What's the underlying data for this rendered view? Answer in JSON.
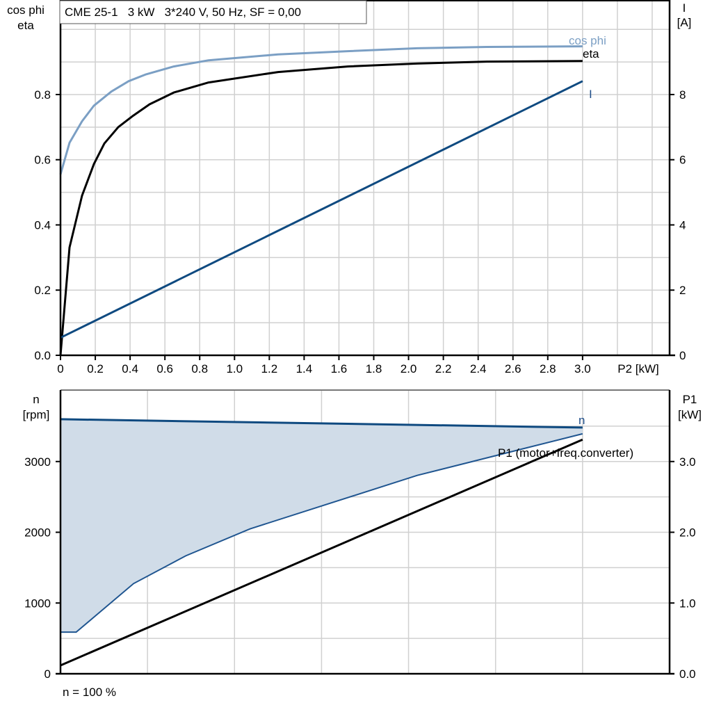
{
  "chart_data": [
    {
      "type": "line",
      "title": "CME 25-1   3 kW   3*240 V, 50 Hz, SF = 0,00",
      "xlabel": "P2 [kW]",
      "ylabel": "cos phi\neta",
      "ylabel_lines": [
        "cos phi",
        "eta"
      ],
      "y2label_lines": [
        "I",
        "[A]"
      ],
      "xlim": [
        0,
        3.5
      ],
      "ylim": [
        0,
        1.09
      ],
      "y2lim": [
        0,
        10.9
      ],
      "grid": true,
      "xticks": [
        "0",
        "0.2",
        "0.4",
        "0.6",
        "0.8",
        "1.0",
        "1.2",
        "1.4",
        "1.6",
        "1.8",
        "2.0",
        "2.2",
        "2.4",
        "2.6",
        "2.8",
        "3.0"
      ],
      "yticks": [
        "0.0",
        "0.2",
        "0.4",
        "0.6",
        "0.8"
      ],
      "y2ticks": [
        "0",
        "2",
        "4",
        "6",
        "8"
      ],
      "series": [
        {
          "name": "cos phi",
          "axis": "left",
          "color": "#7b9fc4",
          "x": [
            0,
            0.052,
            0.124,
            0.192,
            0.292,
            0.392,
            0.492,
            0.651,
            0.851,
            1.25,
            1.65,
            2.05,
            2.45,
            3.0
          ],
          "y": [
            0.555,
            0.652,
            0.718,
            0.766,
            0.809,
            0.841,
            0.862,
            0.886,
            0.905,
            0.923,
            0.933,
            0.942,
            0.946,
            0.948
          ]
        },
        {
          "name": "eta",
          "axis": "left",
          "color": "#000000",
          "x": [
            0,
            0.052,
            0.124,
            0.192,
            0.252,
            0.332,
            0.412,
            0.512,
            0.651,
            0.851,
            1.25,
            1.65,
            2.05,
            2.45,
            3.0
          ],
          "y": [
            0,
            0.331,
            0.49,
            0.587,
            0.65,
            0.7,
            0.733,
            0.77,
            0.806,
            0.837,
            0.869,
            0.886,
            0.895,
            0.901,
            0.903
          ]
        },
        {
          "name": "I",
          "axis": "right",
          "color": "#0f4a80",
          "x": [
            0,
            3.0
          ],
          "y": [
            0.54,
            8.41
          ]
        }
      ]
    },
    {
      "type": "line",
      "xlim": [
        0,
        3.5
      ],
      "ylim": [
        0,
        4010
      ],
      "y2lim": [
        0,
        4.01
      ],
      "grid": true,
      "ylabel_lines": [
        "n",
        "[rpm]"
      ],
      "y2label_lines": [
        "P1",
        "[kW]"
      ],
      "yticks": [
        "0",
        "1000",
        "2000",
        "3000"
      ],
      "y2ticks": [
        "0.0",
        "1.0",
        "2.0",
        "3.0"
      ],
      "footnote": "n = 100 %",
      "series": [
        {
          "name": "n",
          "axis": "left",
          "color": "#0f4a80",
          "x": [
            0,
            3.0
          ],
          "y": [
            3598,
            3480
          ]
        },
        {
          "axis": "left",
          "color": "#1f5590",
          "role": "shaded-range-lower-edge",
          "x": [
            0,
            0.09,
            0.42,
            0.72,
            1.09,
            2.05,
            3.0
          ],
          "y": [
            588,
            588,
            1275,
            1667,
            2049,
            2804,
            3392
          ]
        },
        {
          "name": "P1 (motor+freq.converter)",
          "axis": "right",
          "color": "#000000",
          "x": [
            0,
            3.0
          ],
          "y": [
            0.118,
            3.31
          ]
        }
      ],
      "fill_color": "#d0dce8"
    }
  ]
}
